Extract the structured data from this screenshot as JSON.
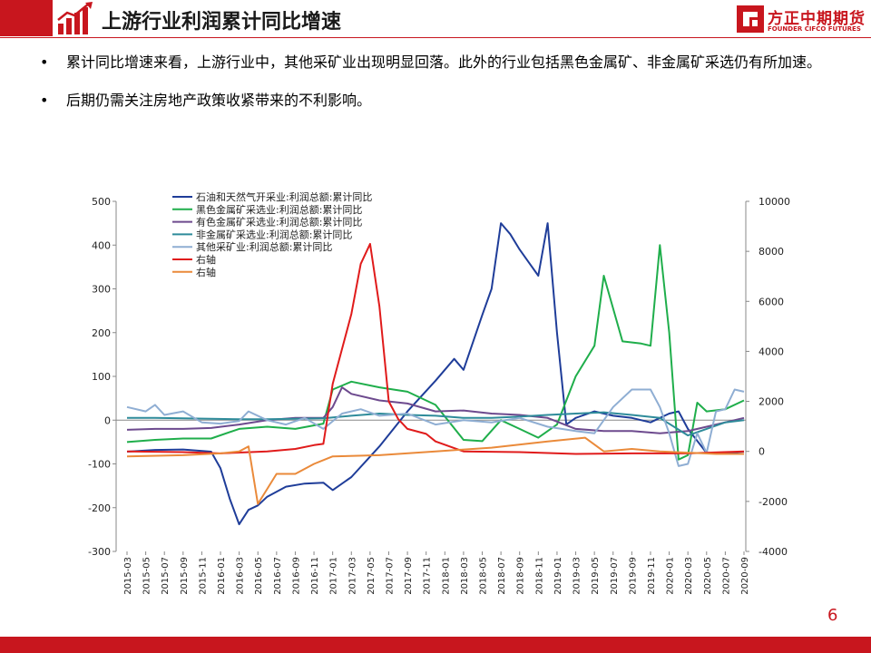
{
  "header": {
    "title": "上游行业利润累计同比增速",
    "logo_cn": "方正中期期货",
    "logo_en": "FOUNDER CIFCO FUTURES"
  },
  "bullets": [
    "累计同比增速来看，上游行业中，其他采矿业出现明显回落。此外的行业包括黑色金属矿、非金属矿采选仍有所加速。",
    "后期仍需关注房地产政策收紧带来的不利影响。"
  ],
  "page_number": "6",
  "colors": {
    "brand": "#c8161e",
    "oil_gas": "#1f3d99",
    "ferrous": "#1fae4b",
    "nonferrous": "#6d4a8e",
    "nonmetal": "#2e8b9a",
    "other_mining": "#8faed3",
    "right_red": "#e01b1b",
    "right_orange": "#ea8a3a"
  },
  "chart_data": {
    "type": "line",
    "x_ticks": [
      "2015-03",
      "2015-05",
      "2015-07",
      "2015-09",
      "2015-11",
      "2016-01",
      "2016-03",
      "2016-05",
      "2016-07",
      "2016-09",
      "2016-11",
      "2017-01",
      "2017-03",
      "2017-05",
      "2017-07",
      "2017-09",
      "2017-11",
      "2018-01",
      "2018-03",
      "2018-05",
      "2018-07",
      "2018-09",
      "2018-11",
      "2019-01",
      "2019-03",
      "2019-05",
      "2019-07",
      "2019-09",
      "2019-11",
      "2020-01",
      "2020-03",
      "2020-05",
      "2020-07",
      "2020-09"
    ],
    "y_left": {
      "min": -300,
      "max": 500,
      "ticks": [
        -300,
        -200,
        -100,
        0,
        100,
        200,
        300,
        400,
        500
      ]
    },
    "y_right": {
      "min": -4000,
      "max": 10000,
      "ticks": [
        -4000,
        -2000,
        0,
        2000,
        4000,
        6000,
        8000,
        10000
      ]
    },
    "legend_position": "top-left",
    "series": [
      {
        "name": "石油和天然气开采业:利润总额:累计同比",
        "axis": "left",
        "color": "#1f3d99",
        "points": [
          [
            "2015-03",
            -72
          ],
          [
            "2015-06",
            -68
          ],
          [
            "2015-09",
            -67
          ],
          [
            "2015-12",
            -72
          ],
          [
            "2016-01",
            -110
          ],
          [
            "2016-02",
            -180
          ],
          [
            "2016-03",
            -238
          ],
          [
            "2016-04",
            -205
          ],
          [
            "2016-05",
            -195
          ],
          [
            "2016-06",
            -175
          ],
          [
            "2016-08",
            -152
          ],
          [
            "2016-10",
            -145
          ],
          [
            "2016-12",
            -143
          ],
          [
            "2017-01",
            -160
          ],
          [
            "2017-03",
            -130
          ],
          [
            "2017-06",
            -60
          ],
          [
            "2017-09",
            20
          ],
          [
            "2017-12",
            90
          ],
          [
            "2018-02",
            140
          ],
          [
            "2018-03",
            115
          ],
          [
            "2018-05",
            240
          ],
          [
            "2018-06",
            300
          ],
          [
            "2018-07",
            450
          ],
          [
            "2018-08",
            425
          ],
          [
            "2018-09",
            390
          ],
          [
            "2018-10",
            360
          ],
          [
            "2018-11",
            330
          ],
          [
            "2018-12",
            450
          ],
          [
            "2019-01",
            200
          ],
          [
            "2019-02",
            -10
          ],
          [
            "2019-03",
            5
          ],
          [
            "2019-05",
            20
          ],
          [
            "2019-07",
            10
          ],
          [
            "2019-09",
            5
          ],
          [
            "2019-11",
            -5
          ],
          [
            "2020-01",
            15
          ],
          [
            "2020-02",
            20
          ],
          [
            "2020-03",
            -20
          ],
          [
            "2020-05",
            -75
          ],
          [
            "2020-07",
            -75
          ],
          [
            "2020-09",
            -72
          ]
        ]
      },
      {
        "name": "黑色金属矿采选业:利润总额:累计同比",
        "axis": "left",
        "color": "#1fae4b",
        "points": [
          [
            "2015-03",
            -50
          ],
          [
            "2015-06",
            -45
          ],
          [
            "2015-09",
            -42
          ],
          [
            "2015-12",
            -42
          ],
          [
            "2016-03",
            -20
          ],
          [
            "2016-06",
            -15
          ],
          [
            "2016-09",
            -20
          ],
          [
            "2016-12",
            -8
          ],
          [
            "2017-01",
            70
          ],
          [
            "2017-03",
            88
          ],
          [
            "2017-06",
            75
          ],
          [
            "2017-09",
            65
          ],
          [
            "2017-12",
            35
          ],
          [
            "2018-03",
            -45
          ],
          [
            "2018-05",
            -48
          ],
          [
            "2018-07",
            0
          ],
          [
            "2018-09",
            -20
          ],
          [
            "2018-11",
            -40
          ],
          [
            "2019-01",
            -10
          ],
          [
            "2019-03",
            100
          ],
          [
            "2019-05",
            170
          ],
          [
            "2019-06",
            330
          ],
          [
            "2019-08",
            180
          ],
          [
            "2019-10",
            175
          ],
          [
            "2019-11",
            170
          ],
          [
            "2019-12",
            400
          ],
          [
            "2020-01",
            200
          ],
          [
            "2020-02",
            -90
          ],
          [
            "2020-03",
            -80
          ],
          [
            "2020-04",
            40
          ],
          [
            "2020-05",
            20
          ],
          [
            "2020-07",
            25
          ],
          [
            "2020-09",
            45
          ]
        ]
      },
      {
        "name": "有色金属矿采选业:利润总额:累计同比",
        "axis": "left",
        "color": "#6d4a8e",
        "points": [
          [
            "2015-03",
            -22
          ],
          [
            "2015-06",
            -20
          ],
          [
            "2015-09",
            -20
          ],
          [
            "2015-12",
            -18
          ],
          [
            "2016-03",
            -10
          ],
          [
            "2016-06",
            0
          ],
          [
            "2016-09",
            5
          ],
          [
            "2016-12",
            5
          ],
          [
            "2017-01",
            30
          ],
          [
            "2017-02",
            75
          ],
          [
            "2017-03",
            60
          ],
          [
            "2017-06",
            45
          ],
          [
            "2017-09",
            38
          ],
          [
            "2017-12",
            20
          ],
          [
            "2018-03",
            22
          ],
          [
            "2018-06",
            15
          ],
          [
            "2018-09",
            12
          ],
          [
            "2018-12",
            5
          ],
          [
            "2019-03",
            -20
          ],
          [
            "2019-06",
            -25
          ],
          [
            "2019-09",
            -25
          ],
          [
            "2019-12",
            -30
          ],
          [
            "2020-03",
            -25
          ],
          [
            "2020-06",
            -10
          ],
          [
            "2020-09",
            5
          ]
        ]
      },
      {
        "name": "非金属矿采选业:利润总额:累计同比",
        "axis": "left",
        "color": "#2e8b9a",
        "points": [
          [
            "2015-03",
            5
          ],
          [
            "2015-06",
            5
          ],
          [
            "2015-09",
            4
          ],
          [
            "2015-12",
            3
          ],
          [
            "2016-03",
            2
          ],
          [
            "2016-06",
            2
          ],
          [
            "2016-09",
            3
          ],
          [
            "2016-12",
            4
          ],
          [
            "2017-03",
            10
          ],
          [
            "2017-06",
            15
          ],
          [
            "2017-09",
            12
          ],
          [
            "2017-12",
            10
          ],
          [
            "2018-03",
            5
          ],
          [
            "2018-06",
            5
          ],
          [
            "2018-09",
            8
          ],
          [
            "2018-12",
            12
          ],
          [
            "2019-03",
            15
          ],
          [
            "2019-06",
            18
          ],
          [
            "2019-09",
            12
          ],
          [
            "2019-12",
            5
          ],
          [
            "2020-03",
            -35
          ],
          [
            "2020-05",
            -20
          ],
          [
            "2020-07",
            -5
          ],
          [
            "2020-09",
            0
          ]
        ]
      },
      {
        "name": "其他采矿业:利润总额:累计同比",
        "axis": "left",
        "color": "#8faed3",
        "points": [
          [
            "2015-03",
            30
          ],
          [
            "2015-05",
            20
          ],
          [
            "2015-06",
            35
          ],
          [
            "2015-07",
            12
          ],
          [
            "2015-09",
            20
          ],
          [
            "2015-11",
            -5
          ],
          [
            "2016-01",
            -8
          ],
          [
            "2016-03",
            -2
          ],
          [
            "2016-04",
            20
          ],
          [
            "2016-06",
            0
          ],
          [
            "2016-08",
            -10
          ],
          [
            "2016-10",
            5
          ],
          [
            "2016-12",
            -20
          ],
          [
            "2017-02",
            15
          ],
          [
            "2017-04",
            25
          ],
          [
            "2017-06",
            10
          ],
          [
            "2017-09",
            15
          ],
          [
            "2017-12",
            -10
          ],
          [
            "2018-03",
            0
          ],
          [
            "2018-06",
            -5
          ],
          [
            "2018-09",
            5
          ],
          [
            "2018-12",
            -15
          ],
          [
            "2019-03",
            -25
          ],
          [
            "2019-05",
            -30
          ],
          [
            "2019-07",
            30
          ],
          [
            "2019-09",
            70
          ],
          [
            "2019-11",
            70
          ],
          [
            "2019-12",
            30
          ],
          [
            "2020-01",
            -30
          ],
          [
            "2020-02",
            -105
          ],
          [
            "2020-03",
            -100
          ],
          [
            "2020-04",
            -30
          ],
          [
            "2020-05",
            -75
          ],
          [
            "2020-06",
            20
          ],
          [
            "2020-07",
            25
          ],
          [
            "2020-08",
            70
          ],
          [
            "2020-09",
            65
          ]
        ]
      },
      {
        "name": "右轴",
        "axis": "right",
        "color": "#e01b1b",
        "points": [
          [
            "2015-03",
            0
          ],
          [
            "2015-09",
            -30
          ],
          [
            "2016-01",
            -80
          ],
          [
            "2016-06",
            0
          ],
          [
            "2016-09",
            100
          ],
          [
            "2016-11",
            250
          ],
          [
            "2016-12",
            300
          ],
          [
            "2017-01",
            2700
          ],
          [
            "2017-03",
            5500
          ],
          [
            "2017-04",
            7500
          ],
          [
            "2017-05",
            8300
          ],
          [
            "2017-06",
            5800
          ],
          [
            "2017-07",
            2000
          ],
          [
            "2017-08",
            1300
          ],
          [
            "2017-09",
            900
          ],
          [
            "2017-11",
            700
          ],
          [
            "2017-12",
            400
          ],
          [
            "2018-03",
            0
          ],
          [
            "2018-09",
            -30
          ],
          [
            "2019-03",
            -100
          ],
          [
            "2019-09",
            -80
          ],
          [
            "2020-03",
            -80
          ],
          [
            "2020-09",
            0
          ]
        ]
      },
      {
        "name": "右轴",
        "axis": "right",
        "color": "#ea8a3a",
        "points": [
          [
            "2015-03",
            -200
          ],
          [
            "2015-09",
            -150
          ],
          [
            "2016-01",
            -80
          ],
          [
            "2016-03",
            0
          ],
          [
            "2016-04",
            200
          ],
          [
            "2016-05",
            -2100
          ],
          [
            "2016-06",
            -1500
          ],
          [
            "2016-07",
            -900
          ],
          [
            "2016-09",
            -900
          ],
          [
            "2016-10",
            -700
          ],
          [
            "2016-11",
            -500
          ],
          [
            "2017-01",
            -200
          ],
          [
            "2017-06",
            -150
          ],
          [
            "2017-12",
            0
          ],
          [
            "2018-06",
            150
          ],
          [
            "2018-12",
            400
          ],
          [
            "2019-04",
            550
          ],
          [
            "2019-06",
            0
          ],
          [
            "2019-09",
            100
          ],
          [
            "2019-12",
            0
          ],
          [
            "2020-03",
            -50
          ],
          [
            "2020-06",
            -100
          ],
          [
            "2020-09",
            -100
          ]
        ]
      }
    ]
  }
}
